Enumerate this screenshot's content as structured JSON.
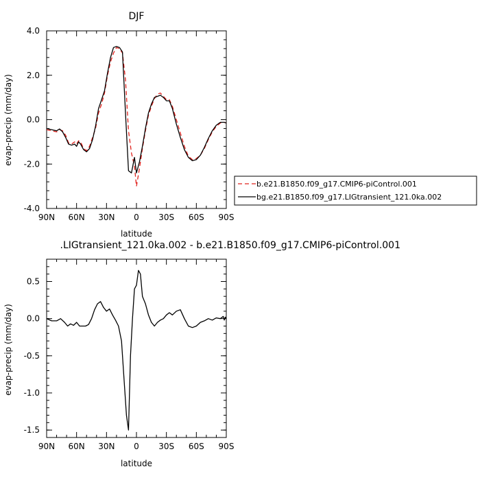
{
  "chart_data": [
    {
      "type": "line",
      "title": "DJF",
      "xlabel": "latitude",
      "ylabel": "evap-precip  (mm/day)",
      "xlim": [
        90,
        -90
      ],
      "ylim": [
        -4.0,
        4.0
      ],
      "x_ticks": [
        90,
        60,
        30,
        0,
        -30,
        -60,
        -90
      ],
      "x_tick_labels": [
        "90N",
        "60N",
        "30N",
        "0",
        "30S",
        "60S",
        "90S"
      ],
      "y_ticks": [
        -4.0,
        -2.0,
        0.0,
        2.0,
        4.0
      ],
      "y_tick_labels": [
        "-4.0",
        "-2.0",
        "0.0",
        "2.0",
        "4.0"
      ],
      "legend_position": "outside-right",
      "series": [
        {
          "name": "b.e21.B1850.f09_g17.CMIP6-piControl.001",
          "color": "#e0201b",
          "dash": "6,4",
          "x": [
            90,
            85,
            80,
            77,
            74,
            71,
            68,
            65,
            62,
            60,
            58,
            56,
            53,
            50,
            47,
            44,
            41,
            38,
            35,
            32,
            29,
            26,
            23,
            20,
            17,
            14,
            11,
            8,
            5,
            2,
            0,
            -3,
            -6,
            -9,
            -12,
            -15,
            -18,
            -21,
            -24,
            -27,
            -30,
            -33,
            -36,
            -40,
            -44,
            -48,
            -52,
            -56,
            -60,
            -64,
            -68,
            -72,
            -76,
            -80,
            -84,
            -88,
            -90
          ],
          "y": [
            -0.45,
            -0.5,
            -0.55,
            -0.45,
            -0.5,
            -0.7,
            -1.05,
            -1.1,
            -1.0,
            -1.1,
            -0.95,
            -1.0,
            -1.3,
            -1.4,
            -1.2,
            -0.8,
            -0.4,
            0.3,
            0.7,
            1.2,
            2.0,
            2.6,
            3.0,
            3.25,
            3.2,
            3.0,
            1.8,
            -0.5,
            -1.5,
            -2.1,
            -3.0,
            -2.2,
            -1.3,
            -0.5,
            0.2,
            0.6,
            0.95,
            1.15,
            1.2,
            1.05,
            0.9,
            0.9,
            0.6,
            0.0,
            -0.6,
            -1.2,
            -1.65,
            -1.8,
            -1.75,
            -1.6,
            -1.3,
            -0.9,
            -0.55,
            -0.3,
            -0.15,
            -0.12,
            -0.15
          ]
        },
        {
          "name": "bg.e21.B1850.f09_g17.LIGtransient_121.0ka.002",
          "color": "#000000",
          "dash": "",
          "x": [
            90,
            85,
            80,
            77,
            74,
            71,
            68,
            65,
            62,
            60,
            58,
            56,
            53,
            50,
            47,
            44,
            41,
            38,
            35,
            32,
            29,
            26,
            23,
            20,
            17,
            14,
            11,
            8,
            5,
            2,
            0,
            -3,
            -6,
            -9,
            -12,
            -15,
            -18,
            -21,
            -24,
            -27,
            -30,
            -33,
            -36,
            -40,
            -44,
            -48,
            -52,
            -56,
            -60,
            -64,
            -68,
            -72,
            -76,
            -80,
            -84,
            -88,
            -90
          ],
          "y": [
            -0.4,
            -0.45,
            -0.5,
            -0.42,
            -0.55,
            -0.8,
            -1.1,
            -1.15,
            -1.1,
            -1.2,
            -1.0,
            -1.1,
            -1.35,
            -1.45,
            -1.3,
            -0.9,
            -0.3,
            0.5,
            0.9,
            1.3,
            2.1,
            2.8,
            3.25,
            3.3,
            3.25,
            3.05,
            0.3,
            -2.3,
            -2.4,
            -1.7,
            -2.4,
            -1.9,
            -1.2,
            -0.4,
            0.3,
            0.7,
            1.0,
            1.05,
            1.1,
            1.0,
            0.85,
            0.85,
            0.5,
            -0.2,
            -0.8,
            -1.35,
            -1.7,
            -1.85,
            -1.8,
            -1.6,
            -1.25,
            -0.85,
            -0.5,
            -0.25,
            -0.12,
            -0.12,
            -0.15
          ]
        }
      ]
    },
    {
      "type": "line",
      "title": ".LIGtransient_121.0ka.002 - b.e21.B1850.f09_g17.CMIP6-piControl.001",
      "xlabel": "latitude",
      "ylabel": "evap-precip  (mm/day)",
      "xlim": [
        90,
        -90
      ],
      "ylim": [
        -1.6,
        0.8
      ],
      "x_ticks": [
        90,
        60,
        30,
        0,
        -30,
        -60,
        -90
      ],
      "x_tick_labels": [
        "90N",
        "60N",
        "30N",
        "0",
        "30S",
        "60S",
        "90S"
      ],
      "y_ticks": [
        -1.5,
        -1.0,
        -0.5,
        0.0,
        0.5
      ],
      "y_tick_labels": [
        "-1.5",
        "-1.0",
        "-0.5",
        "0.0",
        "0.5"
      ],
      "series": [
        {
          "name": "",
          "color": "#000000",
          "dash": "",
          "x": [
            90,
            85,
            80,
            76,
            72,
            69,
            66,
            63,
            60,
            57,
            54,
            51,
            48,
            45,
            42,
            39,
            36,
            33,
            30,
            27,
            24,
            21,
            18,
            15,
            12,
            10,
            8,
            6,
            4,
            2,
            0,
            -2,
            -4,
            -6,
            -9,
            -12,
            -15,
            -18,
            -21,
            -24,
            -27,
            -30,
            -33,
            -36,
            -40,
            -44,
            -48,
            -52,
            -56,
            -60,
            -64,
            -68,
            -72,
            -76,
            -80,
            -84,
            -87,
            -88,
            -89,
            -90
          ],
          "y": [
            0.0,
            -0.03,
            -0.03,
            0.0,
            -0.05,
            -0.1,
            -0.07,
            -0.09,
            -0.05,
            -0.1,
            -0.1,
            -0.1,
            -0.08,
            0.0,
            0.12,
            0.2,
            0.23,
            0.15,
            0.1,
            0.13,
            0.05,
            -0.02,
            -0.1,
            -0.3,
            -0.9,
            -1.3,
            -1.5,
            -0.5,
            0.0,
            0.4,
            0.45,
            0.65,
            0.6,
            0.3,
            0.2,
            0.05,
            -0.05,
            -0.1,
            -0.05,
            -0.02,
            0.0,
            0.05,
            0.08,
            0.05,
            0.1,
            0.12,
            0.0,
            -0.1,
            -0.12,
            -0.1,
            -0.05,
            -0.03,
            0.0,
            -0.02,
            0.01,
            0.0,
            0.03,
            -0.02,
            0.02,
            0.0
          ]
        }
      ]
    }
  ]
}
